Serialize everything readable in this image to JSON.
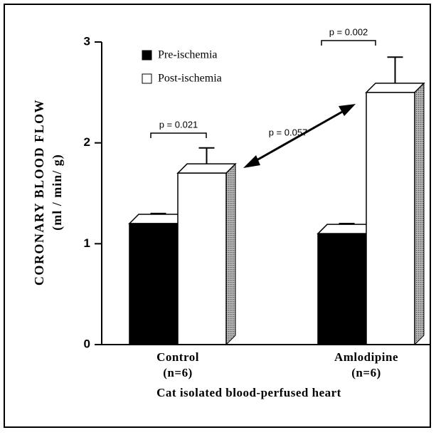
{
  "chart_data": {
    "type": "bar",
    "ylabel": "CORONARY BLOOD FLOW",
    "ylabel_units": "(ml / min/ g)",
    "xlabel": "Cat isolated blood-perfused heart",
    "categories": [
      "Control",
      "Amlodipine"
    ],
    "category_notes": [
      "(n=6)",
      "(n=6)"
    ],
    "series": [
      {
        "name": "Pre-ischemia",
        "color": "#000000",
        "values": [
          1.2,
          1.1
        ],
        "errors": [
          0.1,
          0.1
        ]
      },
      {
        "name": "Post-ischemia",
        "color": "#ffffff",
        "values": [
          1.7,
          2.5
        ],
        "errors": [
          0.25,
          0.35
        ]
      }
    ],
    "ylim": [
      0,
      3
    ],
    "yticks": [
      0,
      1,
      2,
      3
    ],
    "annotations": [
      "p = 0.021",
      "p = 0.002",
      "p = 0.057"
    ]
  }
}
